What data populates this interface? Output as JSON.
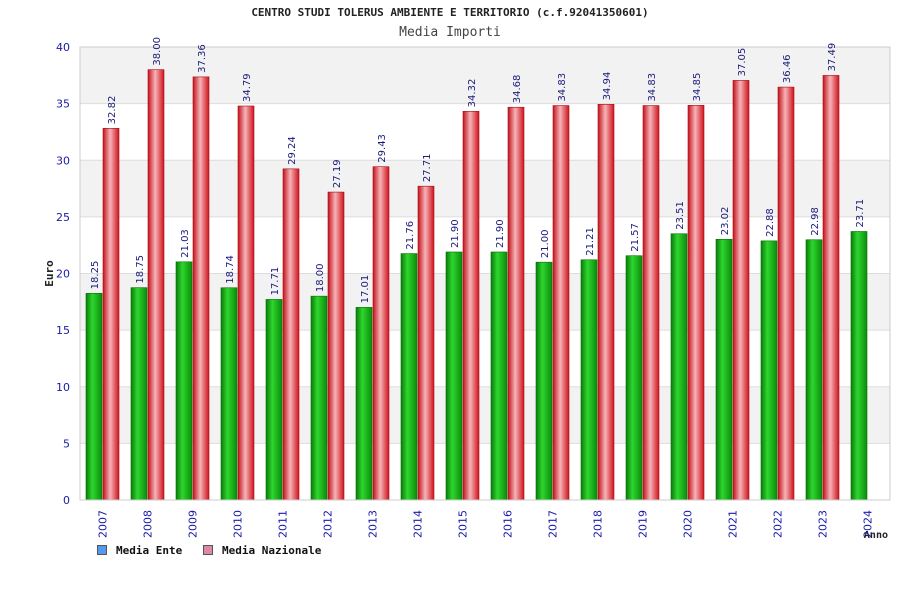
{
  "chart_data": {
    "type": "bar",
    "title": "CENTRO STUDI TOLERUS AMBIENTE E TERRITORIO (c.f.92041350601)",
    "subtitle": "Media Importi",
    "ylabel": "Euro",
    "xlabel": "Anno",
    "ylim": [
      0,
      40
    ],
    "yticks": [
      0,
      5,
      10,
      15,
      20,
      25,
      30,
      35,
      40
    ],
    "categories": [
      "2007",
      "2008",
      "2009",
      "2010",
      "2011",
      "2012",
      "2013",
      "2014",
      "2015",
      "2016",
      "2017",
      "2018",
      "2019",
      "2020",
      "2021",
      "2022",
      "2023",
      "2024"
    ],
    "series": [
      {
        "name": "Media Ente",
        "color": "#12b012",
        "values": [
          18.25,
          18.75,
          21.03,
          18.74,
          17.71,
          18.0,
          17.01,
          21.76,
          21.9,
          21.9,
          21.0,
          21.21,
          21.57,
          23.51,
          23.02,
          22.88,
          22.98,
          23.71
        ],
        "labels": [
          "18.25",
          "18.75",
          "21.03",
          "18.74",
          "17.71",
          "18.00",
          "17.01",
          "21.76",
          "21.90",
          "21.90",
          "21.00",
          "21.21",
          "21.57",
          "23.51",
          "23.02",
          "22.88",
          "22.98",
          "23.71"
        ]
      },
      {
        "name": "Media Nazionale",
        "color": "#e8202a",
        "values": [
          32.82,
          38.0,
          37.36,
          34.79,
          29.24,
          27.19,
          29.43,
          27.71,
          34.32,
          34.68,
          34.83,
          34.94,
          34.83,
          34.85,
          37.05,
          36.46,
          37.49,
          null
        ],
        "labels": [
          "32.82",
          "38.00",
          "37.36",
          "34.79",
          "29.24",
          "27.19",
          "29.43",
          "27.71",
          "34.32",
          "34.68",
          "34.83",
          "34.94",
          "34.83",
          "34.85",
          "37.05",
          "36.46",
          "37.49",
          ""
        ]
      }
    ],
    "legend": {
      "position": "bottom-left",
      "items": [
        {
          "label": "Media Ente",
          "color": "#5599ee"
        },
        {
          "label": "Media Nazionale",
          "color": "#dd88aa"
        }
      ]
    }
  }
}
